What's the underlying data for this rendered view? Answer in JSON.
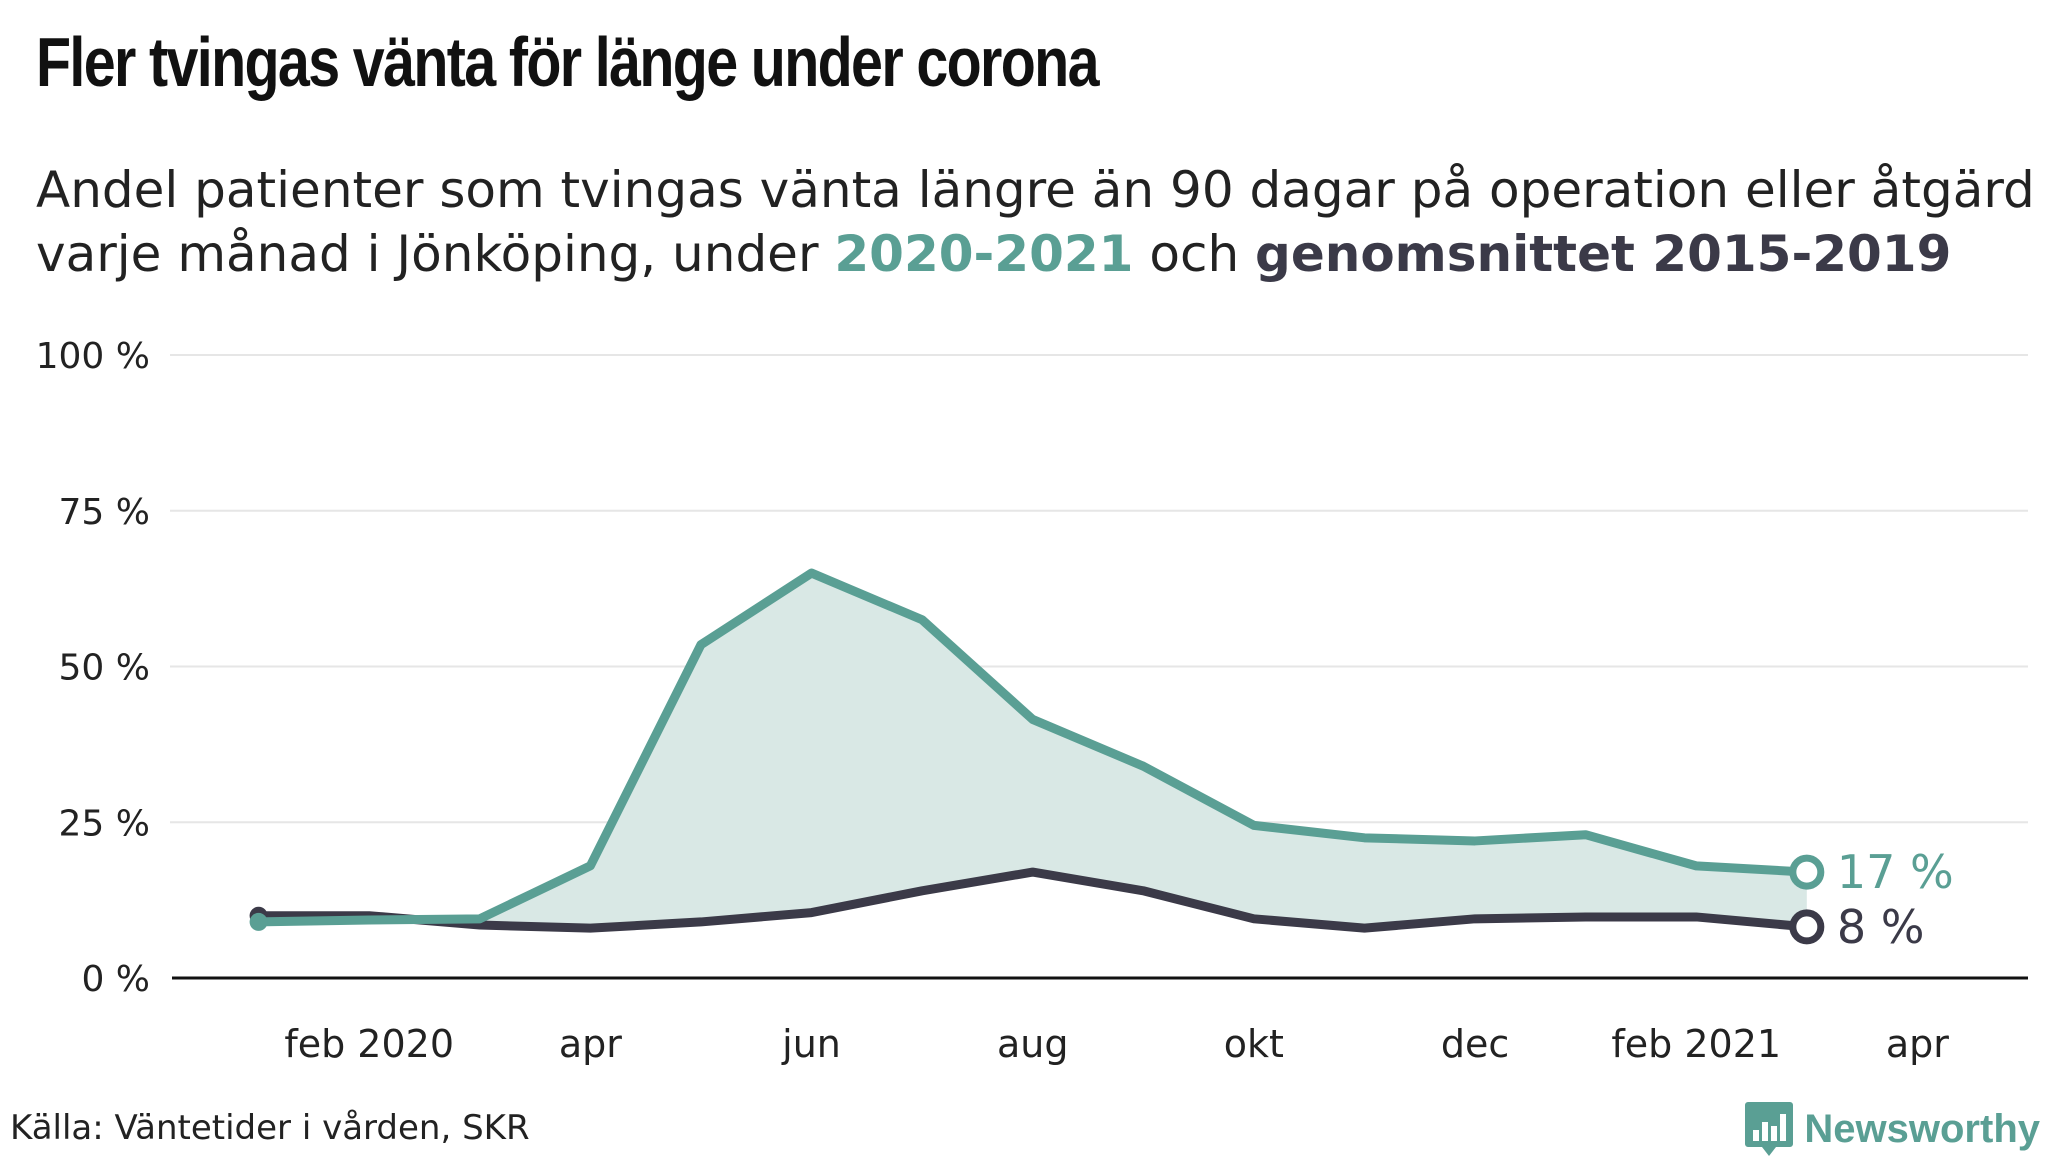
{
  "header": {
    "title": "Fler tvingas vänta för länge under corona",
    "subtitle_part1": "Andel patienter som tvingas vänta längre än 90 dagar på operation eller åtgärd varje månad i Jönköping, under ",
    "subtitle_hl1": "2020-2021",
    "subtitle_part2": " och ",
    "subtitle_hl2": "genomsnittet 2015-2019"
  },
  "footer": {
    "source": "Källa: Väntetider i vården, SKR",
    "brand": "Newsworthy",
    "brand_icon": "bar-chart-speech-icon"
  },
  "colors": {
    "series_2020": "#5a9f94",
    "series_avg": "#3b3a48",
    "area_fill": "#d9e8e5",
    "grid": "#e6e6e6",
    "axis": "#111111"
  },
  "chart_data": {
    "type": "line",
    "ylim": [
      0,
      100
    ],
    "yticks": [
      0,
      25,
      50,
      75,
      100
    ],
    "ytick_labels": [
      "0 %",
      "25 %",
      "50 %",
      "75 %",
      "100 %"
    ],
    "xticks": [
      "2020-02",
      "2020-04",
      "2020-06",
      "2020-08",
      "2020-10",
      "2020-12",
      "2021-02",
      "2021-04"
    ],
    "xtick_labels": [
      "feb 2020",
      "apr",
      "jun",
      "aug",
      "okt",
      "dec",
      "feb 2021",
      "apr"
    ],
    "x_range": [
      "2019-12",
      "2021-05"
    ],
    "x": [
      "2020-01",
      "2020-02",
      "2020-03",
      "2020-04",
      "2020-05",
      "2020-06",
      "2020-07",
      "2020-08",
      "2020-09",
      "2020-10",
      "2020-11",
      "2020-12",
      "2021-01",
      "2021-02",
      "2021-03"
    ],
    "series": [
      {
        "key": "series_2020",
        "values": [
          9,
          9.3,
          9.5,
          18,
          53.5,
          65,
          57.5,
          41.5,
          34,
          24.5,
          22.5,
          22,
          23,
          18,
          17
        ],
        "end_label": "17 %"
      },
      {
        "key": "series_avg",
        "values": [
          10,
          10,
          8.5,
          8,
          9,
          10.5,
          14,
          17,
          14,
          9.5,
          8,
          9.5,
          9.8,
          9.8,
          8.2
        ],
        "end_label": "8 %"
      }
    ],
    "grid": true,
    "legend": "in subtitle"
  }
}
